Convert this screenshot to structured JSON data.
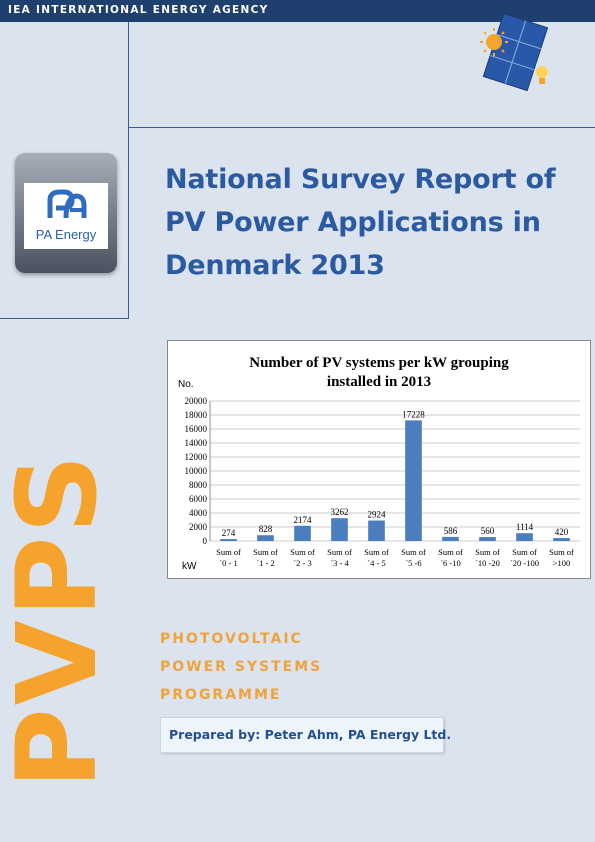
{
  "header": {
    "agency": "IEA INTERNATIONAL ENERGY AGENCY"
  },
  "logo": {
    "company_name": "PA Energy"
  },
  "title": {
    "line1": "National Survey Report of",
    "line2": "PV Power Applications in",
    "line3": "Denmark 2013"
  },
  "chart_data": {
    "type": "bar",
    "title_line1": "Number of PV systems per kW grouping",
    "title_line2": "installed in 2013",
    "ylabel": "No.",
    "xlabel": "kW",
    "ylim": [
      0,
      20000
    ],
    "yticks": [
      0,
      2000,
      4000,
      6000,
      8000,
      10000,
      12000,
      14000,
      16000,
      18000,
      20000
    ],
    "grid": true,
    "bar_color": "#4a7ebf",
    "categories": [
      {
        "line1": "Sum of",
        "line2": "´0 - 1"
      },
      {
        "line1": "Sum of",
        "line2": "´1 - 2"
      },
      {
        "line1": "Sum of",
        "line2": "´2 - 3"
      },
      {
        "line1": "Sum of",
        "line2": "´3 - 4"
      },
      {
        "line1": "Sum of",
        "line2": "´4 - 5"
      },
      {
        "line1": "Sum of",
        "line2": "´5 -6"
      },
      {
        "line1": "Sum of",
        "line2": "´6 -10"
      },
      {
        "line1": "Sum of",
        "line2": "´10 -20"
      },
      {
        "line1": "Sum of",
        "line2": "´20 -100"
      },
      {
        "line1": "Sum of",
        "line2": ">100"
      }
    ],
    "values": [
      274,
      828,
      2174,
      3262,
      2924,
      17228,
      586,
      560,
      1114,
      420
    ]
  },
  "branding": {
    "pvps": "PVPS",
    "programme_line1": "PHOTOVOLTAIC",
    "programme_line2": "POWER SYSTEMS",
    "programme_line3": "PROGRAMME",
    "accent_color": "#f5a32d"
  },
  "prepared_by": "Prepared by: Peter Ahm, PA Energy Ltd."
}
